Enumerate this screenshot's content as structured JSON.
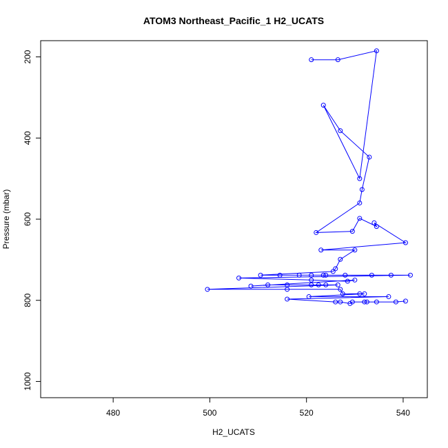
{
  "chart_data": {
    "type": "line",
    "title": "ATOM3 Northeast_Pacific_1 H2_UCATS",
    "xlabel": "H2_UCATS",
    "ylabel": "Pressure (mbar)",
    "xlim": [
      465,
      545
    ],
    "ylim": [
      1040,
      160
    ],
    "y_reversed": true,
    "grid": false,
    "x_ticks": [
      480,
      500,
      520,
      540
    ],
    "y_ticks": [
      200,
      400,
      600,
      800,
      1000
    ],
    "series": [
      {
        "color": "#0000ff",
        "marker": "open-circle",
        "points": [
          {
            "x": 521,
            "y": 207
          },
          {
            "x": 526.5,
            "y": 207
          },
          {
            "x": 534.5,
            "y": 185
          },
          {
            "x": 531,
            "y": 500
          },
          {
            "x": 523.5,
            "y": 319
          },
          {
            "x": 527,
            "y": 382
          },
          {
            "x": 533,
            "y": 447
          },
          {
            "x": 531.5,
            "y": 527
          },
          {
            "x": 531,
            "y": 560
          },
          {
            "x": 522,
            "y": 633
          },
          {
            "x": 529.5,
            "y": 630
          },
          {
            "x": 531,
            "y": 598
          },
          {
            "x": 534.5,
            "y": 618
          },
          {
            "x": 534,
            "y": 609
          },
          {
            "x": 540.5,
            "y": 658
          },
          {
            "x": 523,
            "y": 676
          },
          {
            "x": 530,
            "y": 676
          },
          {
            "x": 527,
            "y": 699
          },
          {
            "x": 526,
            "y": 722
          },
          {
            "x": 525.5,
            "y": 729
          },
          {
            "x": 510.5,
            "y": 738
          },
          {
            "x": 514.5,
            "y": 738
          },
          {
            "x": 518.5,
            "y": 738
          },
          {
            "x": 521,
            "y": 738
          },
          {
            "x": 523.5,
            "y": 738
          },
          {
            "x": 524,
            "y": 738
          },
          {
            "x": 528,
            "y": 738
          },
          {
            "x": 533.5,
            "y": 738
          },
          {
            "x": 537.5,
            "y": 738
          },
          {
            "x": 541.5,
            "y": 738
          },
          {
            "x": 506,
            "y": 745
          },
          {
            "x": 521,
            "y": 750
          },
          {
            "x": 528.5,
            "y": 753
          },
          {
            "x": 530,
            "y": 750
          },
          {
            "x": 508.5,
            "y": 765
          },
          {
            "x": 512,
            "y": 762
          },
          {
            "x": 516,
            "y": 762
          },
          {
            "x": 521,
            "y": 762
          },
          {
            "x": 522.5,
            "y": 762
          },
          {
            "x": 524,
            "y": 762
          },
          {
            "x": 526.5,
            "y": 762
          },
          {
            "x": 499.5,
            "y": 773
          },
          {
            "x": 516,
            "y": 773
          },
          {
            "x": 527,
            "y": 773
          },
          {
            "x": 527.5,
            "y": 784
          },
          {
            "x": 531,
            "y": 784
          },
          {
            "x": 532,
            "y": 784
          },
          {
            "x": 520.5,
            "y": 791
          },
          {
            "x": 537,
            "y": 791
          },
          {
            "x": 516,
            "y": 797
          },
          {
            "x": 526,
            "y": 804
          },
          {
            "x": 527,
            "y": 804
          },
          {
            "x": 529,
            "y": 808
          },
          {
            "x": 529.5,
            "y": 804
          },
          {
            "x": 532,
            "y": 804
          },
          {
            "x": 532.5,
            "y": 804
          },
          {
            "x": 534.5,
            "y": 804
          },
          {
            "x": 538.5,
            "y": 804
          },
          {
            "x": 540.5,
            "y": 802
          }
        ]
      }
    ]
  }
}
